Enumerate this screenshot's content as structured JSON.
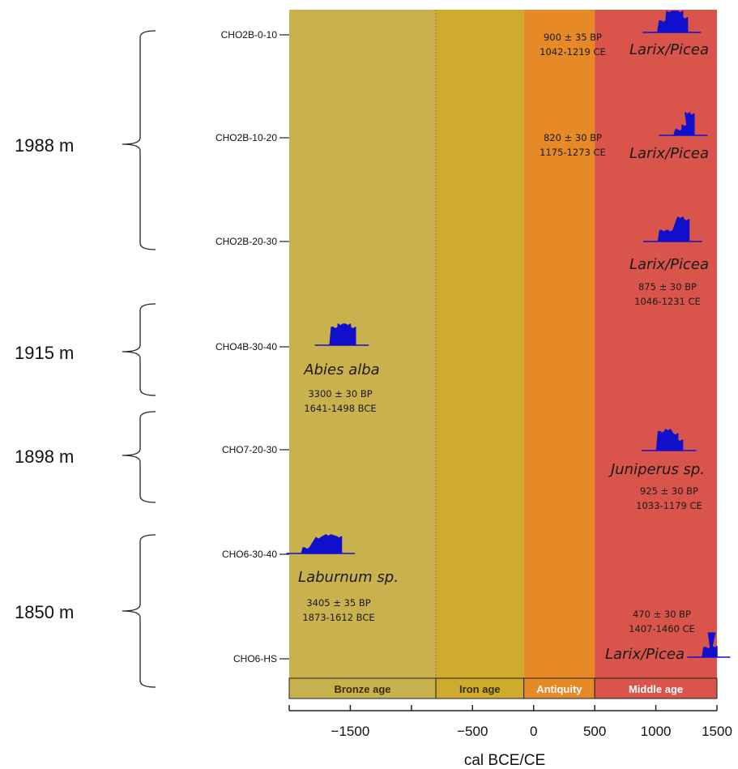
{
  "chart_data": {
    "type": "other",
    "xlabel": "cal BCE/CE",
    "xlim": [
      -2000,
      1500
    ],
    "x_ticks": [
      -1500,
      -500,
      0,
      500,
      1000,
      1500
    ],
    "x_tick_labels": [
      "−1500",
      "−500",
      "0",
      "500",
      "1000",
      "1500"
    ],
    "periods": [
      {
        "name": "Bronze age",
        "start": -2000,
        "end": -800,
        "color": "#c9b24e",
        "label_color": "#3a2d00"
      },
      {
        "name": "Iron age",
        "start": -800,
        "end": -80,
        "color": "#ceab2c",
        "label_color": "#3a2d00"
      },
      {
        "name": "Antiquity",
        "start": -80,
        "end": 500,
        "color": "#e58a26",
        "label_color": "#ffffff"
      },
      {
        "name": "Middle age",
        "start": 500,
        "end": 1500,
        "color": "#d9544a",
        "label_color": "#ffffff"
      }
    ],
    "samples": [
      "CHO2B-0-10",
      "CHO2B-10-20",
      "CHO2B-20-30",
      "CHO4B-30-40",
      "CHO7-20-30",
      "CHO6-30-40",
      "CHO6-HS"
    ],
    "altitude_groups": [
      {
        "label": "1988 m",
        "samples": [
          "CHO2B-0-10",
          "CHO2B-10-20",
          "CHO2B-20-30"
        ]
      },
      {
        "label": "1915 m",
        "samples": [
          "CHO4B-30-40"
        ]
      },
      {
        "label": "1898 m",
        "samples": [
          "CHO7-20-30"
        ]
      },
      {
        "label": "1850 m",
        "samples": [
          "CHO6-30-40",
          "CHO6-HS"
        ]
      }
    ],
    "dates": [
      {
        "sample": "CHO2B-0-10",
        "taxon": "Larix/Picea",
        "bp": "900 ± 35 BP",
        "cal": "1042-1219 CE",
        "peaks": [
          [
            1042,
            0.55
          ],
          [
            1090,
            1.0
          ],
          [
            1180,
            1.0
          ],
          [
            1219,
            0.7
          ]
        ]
      },
      {
        "sample": "CHO2B-10-20",
        "taxon": "Larix/Picea",
        "bp": "820 ± 30 BP",
        "cal": "1175-1273 CE",
        "peaks": [
          [
            1175,
            0.25
          ],
          [
            1215,
            0.45
          ],
          [
            1240,
            1.0
          ],
          [
            1273,
            0.95
          ]
        ]
      },
      {
        "sample": "CHO2B-20-30",
        "taxon": "Larix/Picea",
        "bp": "875 ± 30 BP",
        "cal": "1046-1231 CE",
        "peaks": [
          [
            1046,
            0.45
          ],
          [
            1100,
            0.45
          ],
          [
            1180,
            1.0
          ],
          [
            1231,
            0.9
          ]
        ]
      },
      {
        "sample": "CHO4B-30-40",
        "taxon": "Abies alba",
        "bp": "3300 ± 30 BP",
        "cal": "1641-1498 BCE",
        "peaks": [
          [
            -1641,
            0.85
          ],
          [
            -1600,
            1.0
          ],
          [
            -1540,
            1.0
          ],
          [
            -1498,
            0.85
          ]
        ]
      },
      {
        "sample": "CHO7-20-30",
        "taxon": "Juniperus sp.",
        "bp": "925 ± 30 BP",
        "cal": "1033-1179 CE",
        "peaks": [
          [
            1033,
            0.9
          ],
          [
            1080,
            1.0
          ],
          [
            1140,
            0.8
          ],
          [
            1179,
            0.5
          ]
        ]
      },
      {
        "sample": "CHO6-30-40",
        "taxon": "Laburnum sp.",
        "bp": "3405 ± 35 BP",
        "cal": "1873-1612 BCE",
        "peaks": [
          [
            -1873,
            0.3
          ],
          [
            -1780,
            0.85
          ],
          [
            -1700,
            1.0
          ],
          [
            -1612,
            0.9
          ]
        ]
      },
      {
        "sample": "CHO6-HS",
        "taxon": "Larix/Picea",
        "bp": "470 ± 30 BP",
        "cal": "1407-1460 CE",
        "peaks": [
          [
            1407,
            0.4
          ],
          [
            1430,
            1.0
          ],
          [
            1445,
            1.0
          ],
          [
            1460,
            0.45
          ]
        ]
      }
    ]
  }
}
